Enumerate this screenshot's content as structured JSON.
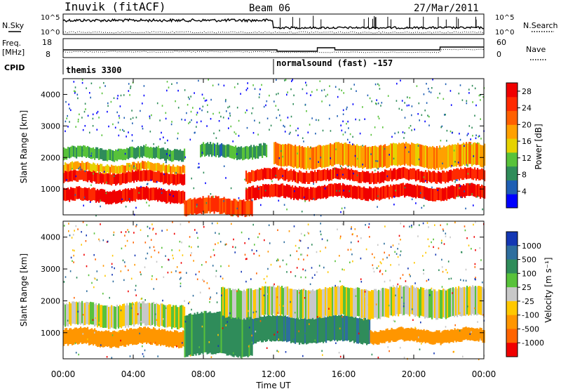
{
  "header": {
    "radar": "Inuvik (fitACF)",
    "beam": "Beam 06",
    "date": "27/Mar/2011"
  },
  "top_panels": {
    "nsky": {
      "label": "N.Sky",
      "ticks": [
        "10^5",
        "10^0"
      ],
      "right_ticks": [
        "10^5",
        "10^0"
      ],
      "right_label": "N.Search"
    },
    "freq": {
      "label_line1": "Freq.",
      "label_line2": "[MHz]",
      "ticks": [
        "18",
        "8"
      ],
      "right_ticks": [
        "60",
        "0"
      ],
      "right_label": "Nave"
    },
    "cpid": {
      "label": "CPID",
      "segments": [
        "themis 3300",
        "normalsound (fast) -157"
      ]
    }
  },
  "colors": {
    "power_scale": [
      "#0000ff",
      "#1f5fb4",
      "#2f8c5a",
      "#58c23a",
      "#e6d200",
      "#ffa000",
      "#ff6000",
      "#ff2a00",
      "#f00000"
    ],
    "velocity_scale": [
      "#1437b4",
      "#2e6e9e",
      "#2f8c5a",
      "#58c23a",
      "#c8c8c8",
      "#ffc800",
      "#ff9600",
      "#ff6400",
      "#f00000"
    ]
  },
  "chart_data": [
    {
      "type": "heatmap",
      "name": "power",
      "ylabel": "Slant Range [km]",
      "yticks": [
        1000,
        2000,
        3000,
        4000
      ],
      "ylim": [
        180,
        4500
      ],
      "xlim": [
        0,
        24
      ],
      "colorbar": {
        "label": "Power [dB]",
        "ticks": [
          "4",
          "8",
          "12",
          "16",
          "20",
          "24",
          "28"
        ],
        "range": [
          0,
          30
        ]
      },
      "features": [
        {
          "t0": 0,
          "t1": 6.9,
          "r0": 600,
          "r1": 1000,
          "level": 28
        },
        {
          "t0": 0,
          "t1": 6.9,
          "r0": 1200,
          "r1": 1550,
          "level": 27
        },
        {
          "t0": 0,
          "t1": 6.9,
          "r0": 1550,
          "r1": 1800,
          "level": 18
        },
        {
          "t0": 0,
          "t1": 6.9,
          "r0": 1950,
          "r1": 2300,
          "level": 10
        },
        {
          "t0": 6.9,
          "t1": 10.8,
          "r0": 200,
          "r1": 700,
          "level": 24
        },
        {
          "t0": 7.8,
          "t1": 11.6,
          "r0": 2000,
          "r1": 2400,
          "level": 9
        },
        {
          "t0": 10.4,
          "t1": 24,
          "r0": 700,
          "r1": 1100,
          "level": 28
        },
        {
          "t0": 10.4,
          "t1": 24,
          "r0": 1250,
          "r1": 1600,
          "level": 26
        },
        {
          "t0": 12,
          "t1": 24,
          "r0": 1700,
          "r1": 2400,
          "level": 18
        }
      ]
    },
    {
      "type": "heatmap",
      "name": "velocity",
      "ylabel": "Slant Range [km]",
      "yticks": [
        1000,
        2000,
        3000,
        4000
      ],
      "ylim": [
        180,
        4500
      ],
      "xlim": [
        0,
        24
      ],
      "xticks": [
        "00:00",
        "04:00",
        "08:00",
        "12:00",
        "16:00",
        "20:00",
        "00:00"
      ],
      "xlabel": "Time UT",
      "colorbar": {
        "label": "Velocity [m s⁻¹]",
        "ticks": [
          "1000",
          "500",
          "100",
          "25",
          "-25",
          "-100",
          "-500",
          "-1000"
        ]
      },
      "features": [
        {
          "t0": 0,
          "t1": 6.9,
          "r0": 600,
          "r1": 1100,
          "level": -300
        },
        {
          "t0": 0,
          "t1": 6.9,
          "r0": 1200,
          "r1": 1900,
          "level": 0
        },
        {
          "t0": 6.9,
          "t1": 10.8,
          "r0": 300,
          "r1": 1600,
          "level": 150
        },
        {
          "t0": 10.4,
          "t1": 17.5,
          "r0": 700,
          "r1": 1500,
          "level": 450
        },
        {
          "t0": 17.5,
          "t1": 24,
          "r0": 700,
          "r1": 1100,
          "level": -300
        },
        {
          "t0": 9,
          "t1": 24,
          "r0": 1500,
          "r1": 2400,
          "level": 0
        }
      ]
    }
  ]
}
